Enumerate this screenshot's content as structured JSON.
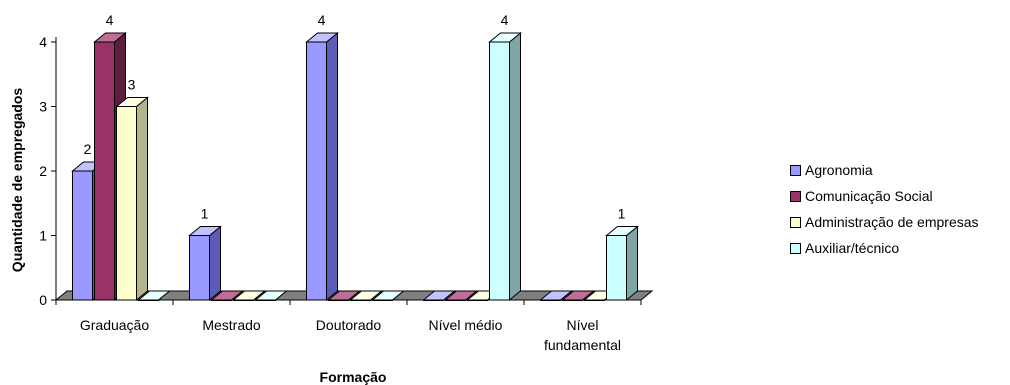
{
  "chart_data": {
    "type": "bar",
    "title": "",
    "xlabel": "Formação",
    "ylabel": "Quantidade de empregados",
    "ylim": [
      0,
      4
    ],
    "yticks": [
      "0",
      "1",
      "2",
      "3",
      "4"
    ],
    "categories": [
      [
        "Graduação"
      ],
      [
        "Mestrado"
      ],
      [
        "Doutorado"
      ],
      [
        "Nível médio"
      ],
      [
        "Nível",
        "fundamental"
      ]
    ],
    "series": [
      {
        "name": "Agronomia",
        "values": [
          2,
          1,
          4,
          0,
          0
        ],
        "labels": [
          "2",
          "1",
          "4",
          "",
          ""
        ],
        "color": "#9999ff",
        "side": "#5c5cb8",
        "top": "#c2c2ff"
      },
      {
        "name": "Comunicação Social",
        "values": [
          4,
          0,
          0,
          0,
          0
        ],
        "labels": [
          "4",
          "",
          "",
          "",
          ""
        ],
        "color": "#993366",
        "side": "#5e1f3f",
        "top": "#bf6f97"
      },
      {
        "name": "Administração de empresas",
        "values": [
          3,
          0,
          0,
          0,
          0
        ],
        "labels": [
          "3",
          "",
          "",
          "",
          ""
        ],
        "color": "#ffffcc",
        "side": "#b3b38c",
        "top": "#ffffe6"
      },
      {
        "name": "Auxiliar/técnico",
        "values": [
          0,
          0,
          0,
          4,
          1
        ],
        "labels": [
          "",
          "",
          "",
          "4",
          "1"
        ],
        "color": "#ccffff",
        "side": "#7fa6a6",
        "top": "#e6ffff"
      }
    ],
    "legend_position": "right",
    "grid": false
  }
}
